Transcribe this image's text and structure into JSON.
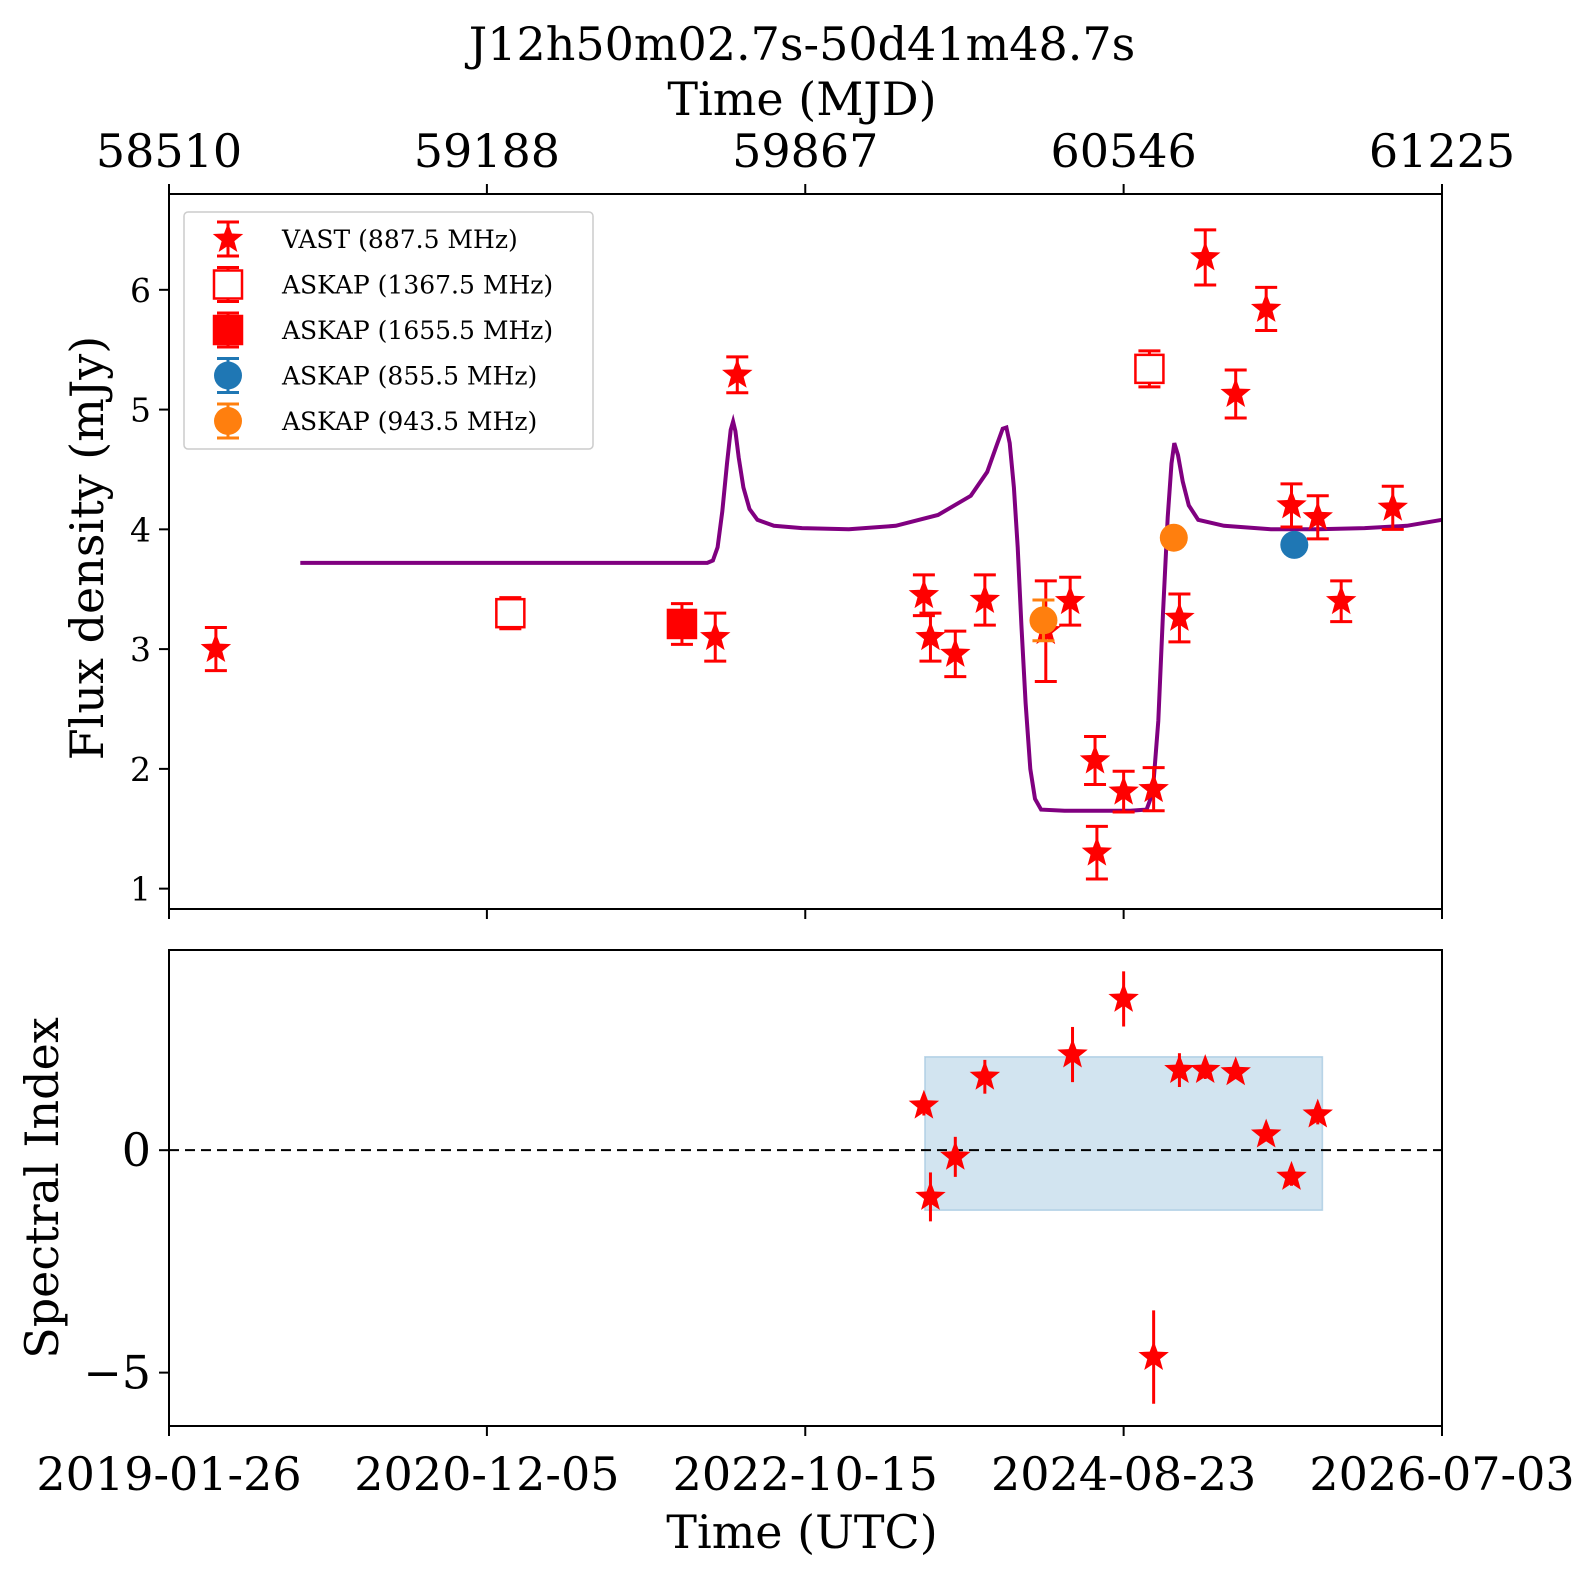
{
  "figure": {
    "title": "J12h50m02.7s-50d41m48.7s",
    "top_xlabel": "Time (MJD)",
    "bottom_xlabel": "Time (UTC)"
  },
  "chart_data": [
    {
      "type": "scatter",
      "panel": "flux",
      "ylabel": "Flux density (mJy)",
      "xlim": [
        58510,
        61225
      ],
      "ylim": [
        0.83,
        6.8
      ],
      "top_ticks": [
        58510,
        59188,
        59867,
        60546,
        61225
      ],
      "yticks": [
        1,
        2,
        3,
        4,
        5,
        6
      ],
      "legend_position": "upper left",
      "series": [
        {
          "name": "VAST (887.5 MHz)",
          "marker": "star",
          "filled": true,
          "color": "#ff0000",
          "points": [
            {
              "x": 58610,
              "y": 3.0,
              "err": 0.18
            },
            {
              "x": 59675,
              "y": 3.1,
              "err": 0.2
            },
            {
              "x": 59722,
              "y": 5.29,
              "err": 0.15
            },
            {
              "x": 60120,
              "y": 3.45,
              "err": 0.17
            },
            {
              "x": 60134,
              "y": 3.1,
              "err": 0.2
            },
            {
              "x": 60187,
              "y": 2.96,
              "err": 0.19
            },
            {
              "x": 60250,
              "y": 3.41,
              "err": 0.21
            },
            {
              "x": 60380,
              "y": 3.15,
              "err": 0.42
            },
            {
              "x": 60432,
              "y": 3.4,
              "err": 0.2
            },
            {
              "x": 60485,
              "y": 2.07,
              "err": 0.2
            },
            {
              "x": 60489,
              "y": 1.3,
              "err": 0.22
            },
            {
              "x": 60546,
              "y": 1.81,
              "err": 0.17
            },
            {
              "x": 60610,
              "y": 1.83,
              "err": 0.18
            },
            {
              "x": 60665,
              "y": 3.26,
              "err": 0.2
            },
            {
              "x": 60720,
              "y": 6.27,
              "err": 0.23
            },
            {
              "x": 60785,
              "y": 5.13,
              "err": 0.2
            },
            {
              "x": 60850,
              "y": 5.84,
              "err": 0.18
            },
            {
              "x": 60904,
              "y": 4.2,
              "err": 0.18
            },
            {
              "x": 60960,
              "y": 4.1,
              "err": 0.18
            },
            {
              "x": 61010,
              "y": 3.4,
              "err": 0.17
            },
            {
              "x": 61120,
              "y": 4.18,
              "err": 0.18
            }
          ]
        },
        {
          "name": "ASKAP (1367.5 MHz)",
          "marker": "square",
          "filled": false,
          "color": "#ff0000",
          "points": [
            {
              "x": 59238,
              "y": 3.3,
              "err": 0.13
            },
            {
              "x": 60601,
              "y": 5.34,
              "err": 0.15
            }
          ]
        },
        {
          "name": "ASKAP (1655.5 MHz)",
          "marker": "square",
          "filled": true,
          "color": "#ff0000",
          "points": [
            {
              "x": 59604,
              "y": 3.21,
              "err": 0.17
            }
          ]
        },
        {
          "name": "ASKAP (855.5 MHz)",
          "marker": "circle",
          "filled": true,
          "color": "#1f77b4",
          "points": [
            {
              "x": 60910,
              "y": 3.87,
              "err": 0.05
            }
          ]
        },
        {
          "name": "ASKAP (943.5 MHz)",
          "marker": "circle",
          "filled": true,
          "color": "#ff7f0e",
          "points": [
            {
              "x": 60375,
              "y": 3.24,
              "err": 0.17
            },
            {
              "x": 60653,
              "y": 3.93,
              "err": 0.05
            }
          ]
        }
      ],
      "model_curve": {
        "color": "#800080",
        "points": [
          [
            58790,
            3.72
          ],
          [
            59560,
            3.72
          ],
          [
            59600,
            3.72
          ],
          [
            59635,
            3.72
          ],
          [
            59658,
            3.72
          ],
          [
            59670,
            3.74
          ],
          [
            59680,
            3.85
          ],
          [
            59690,
            4.15
          ],
          [
            59700,
            4.55
          ],
          [
            59708,
            4.83
          ],
          [
            59713,
            4.9
          ],
          [
            59718,
            4.82
          ],
          [
            59725,
            4.6
          ],
          [
            59735,
            4.35
          ],
          [
            59748,
            4.17
          ],
          [
            59765,
            4.08
          ],
          [
            59800,
            4.03
          ],
          [
            59860,
            4.01
          ],
          [
            59960,
            4.0
          ],
          [
            60060,
            4.03
          ],
          [
            60150,
            4.12
          ],
          [
            60220,
            4.28
          ],
          [
            60255,
            4.48
          ],
          [
            60275,
            4.7
          ],
          [
            60288,
            4.84
          ],
          [
            60296,
            4.85
          ],
          [
            60303,
            4.72
          ],
          [
            60312,
            4.35
          ],
          [
            60320,
            3.85
          ],
          [
            60328,
            3.2
          ],
          [
            60337,
            2.55
          ],
          [
            60347,
            2.0
          ],
          [
            60357,
            1.75
          ],
          [
            60370,
            1.66
          ],
          [
            60420,
            1.65
          ],
          [
            60560,
            1.65
          ],
          [
            60595,
            1.66
          ],
          [
            60608,
            1.8
          ],
          [
            60620,
            2.4
          ],
          [
            60630,
            3.3
          ],
          [
            60640,
            4.1
          ],
          [
            60648,
            4.55
          ],
          [
            60654,
            4.72
          ],
          [
            60662,
            4.62
          ],
          [
            60672,
            4.4
          ],
          [
            60685,
            4.2
          ],
          [
            60705,
            4.08
          ],
          [
            60760,
            4.03
          ],
          [
            60860,
            4.0
          ],
          [
            60960,
            4.0
          ],
          [
            61060,
            4.01
          ],
          [
            61150,
            4.03
          ],
          [
            61225,
            4.08
          ]
        ]
      }
    },
    {
      "type": "scatter",
      "panel": "spectral_index",
      "ylabel": "Spectral Index",
      "xlim": [
        58510,
        61225
      ],
      "ylim": [
        -6.2,
        4.5
      ],
      "yticks": [
        -5,
        0
      ],
      "ytick_labels": [
        "−5",
        "0"
      ],
      "xtick_labels": [
        "2019-01-26",
        "2020-12-05",
        "2022-10-15",
        "2024-08-23",
        "2026-07-03"
      ],
      "reference_line": 0,
      "shaded_band": {
        "x0": 60122,
        "x1": 60970,
        "y0": -1.35,
        "y1": 2.1,
        "color": "#1f77b4"
      },
      "series": [
        {
          "name": "",
          "marker": "star",
          "color": "#ff0000",
          "points": [
            {
              "x": 60120,
              "y": 1.0,
              "err": 0.22
            },
            {
              "x": 60134,
              "y": -1.05,
              "err": 0.55
            },
            {
              "x": 60187,
              "y": -0.15,
              "err": 0.45
            },
            {
              "x": 60250,
              "y": 1.65,
              "err": 0.38
            },
            {
              "x": 60437,
              "y": 2.15,
              "err": 0.62
            },
            {
              "x": 60546,
              "y": 3.4,
              "err": 0.62
            },
            {
              "x": 60610,
              "y": -4.65,
              "err": 1.05
            },
            {
              "x": 60665,
              "y": 1.8,
              "err": 0.38
            },
            {
              "x": 60720,
              "y": 1.8,
              "err": 0.2
            },
            {
              "x": 60785,
              "y": 1.75,
              "err": 0.15
            },
            {
              "x": 60850,
              "y": 0.35,
              "err": 0.12
            },
            {
              "x": 60904,
              "y": -0.6,
              "err": 0.2
            },
            {
              "x": 60960,
              "y": 0.8,
              "err": 0.22
            }
          ]
        }
      ]
    }
  ]
}
